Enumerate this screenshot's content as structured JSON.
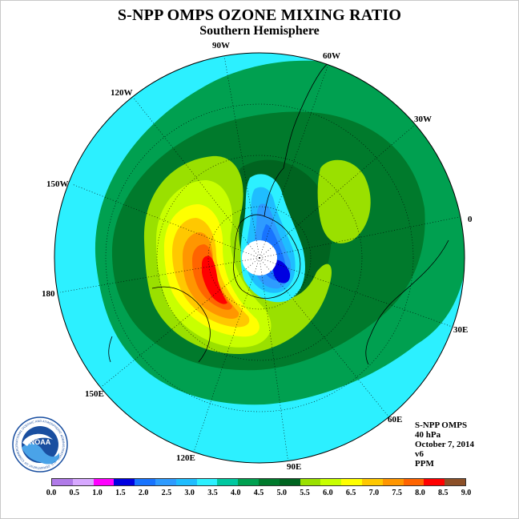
{
  "header": {
    "title": "S-NPP OMPS OZONE MIXING RATIO",
    "subtitle": "Southern Hemisphere"
  },
  "map": {
    "projection": "south polar stereographic",
    "longitude_labels": [
      "90W",
      "60W",
      "120W",
      "30W",
      "150W",
      "0",
      "180",
      "30E",
      "150E",
      "60E",
      "120E",
      "90E"
    ]
  },
  "info": {
    "instrument": "S-NPP OMPS",
    "pressure_level": "40 hPa",
    "date": "October 7, 2014",
    "version": "v6",
    "units": "PPM"
  },
  "colorbar": {
    "colors": [
      "#b07ae8",
      "#d7a8ff",
      "#ff00ff",
      "#0000e0",
      "#1874ff",
      "#2e9bff",
      "#1fbdff",
      "#2cf0ff",
      "#00c8a0",
      "#00a050",
      "#007a2c",
      "#006420",
      "#9ae000",
      "#c8ff00",
      "#ffff00",
      "#ffc800",
      "#ff9600",
      "#ff6400",
      "#ff0000",
      "#8c5028"
    ],
    "ticks": [
      "0.0",
      "0.5",
      "1.0",
      "1.5",
      "2.0",
      "2.5",
      "3.0",
      "3.5",
      "4.0",
      "4.5",
      "5.0",
      "5.5",
      "6.0",
      "6.5",
      "7.0",
      "7.5",
      "8.0",
      "8.5",
      "9.0"
    ]
  },
  "logo": {
    "icon": "noaa-logo-icon",
    "text": "NOAA",
    "ring_text": "NATIONAL OCEANIC AND ATMOSPHERIC ADMINISTRATION · U.S. DEPARTMENT OF COMMERCE"
  }
}
